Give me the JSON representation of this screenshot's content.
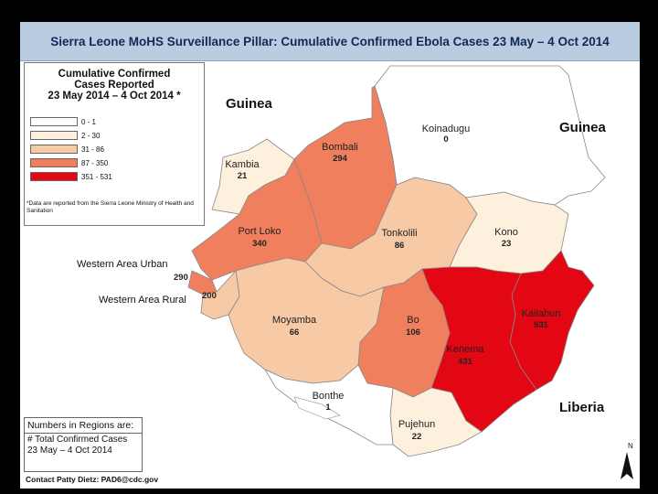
{
  "title": "Sierra Leone MoHS Surveillance Pillar:  Cumulative Confirmed Ebola Cases 23 May – 4 Oct 2014",
  "legend": {
    "title": "Cumulative Confirmed\nCases Reported\n23 May 2014 –  4 Oct 2014 *",
    "classes": [
      {
        "label": "0 - 1",
        "color": "#ffffff"
      },
      {
        "label": "2 - 30",
        "color": "#fdf0dc"
      },
      {
        "label": "31 - 86",
        "color": "#f8c9a5"
      },
      {
        "label": "87 - 350",
        "color": "#f07f5e"
      },
      {
        "label": "351 - 531",
        "color": "#e30613"
      }
    ],
    "note": "*Data are reported from the Sierra Leone Ministry of Health and Sanitation"
  },
  "countries": {
    "guinea_west": "Guinea",
    "guinea_east": "Guinea",
    "liberia": "Liberia"
  },
  "districts": [
    {
      "name": "Koinadugu",
      "count": "0"
    },
    {
      "name": "Bombali",
      "count": "294"
    },
    {
      "name": "Kambia",
      "count": "21"
    },
    {
      "name": "Port Loko",
      "count": "340"
    },
    {
      "name": "Tonkolili",
      "count": "86"
    },
    {
      "name": "Kono",
      "count": "23"
    },
    {
      "name": "Kailahun",
      "count": "531"
    },
    {
      "name": "Kenema",
      "count": "431"
    },
    {
      "name": "Bo",
      "count": "106"
    },
    {
      "name": "Moyamba",
      "count": "66"
    },
    {
      "name": "Bonthe",
      "count": "1"
    },
    {
      "name": "Pujehun",
      "count": "22"
    },
    {
      "name": "Western Area Urban",
      "count": "290"
    },
    {
      "name": "Western Area Rural",
      "count": "200"
    }
  ],
  "numbers_box": {
    "title": "Numbers in Regions are:",
    "body": "# Total Confirmed Cases\n23 May – 4 Oct 2014"
  },
  "contact": "Contact Patty Dietz: PAD6@cdc.gov",
  "north": "N"
}
